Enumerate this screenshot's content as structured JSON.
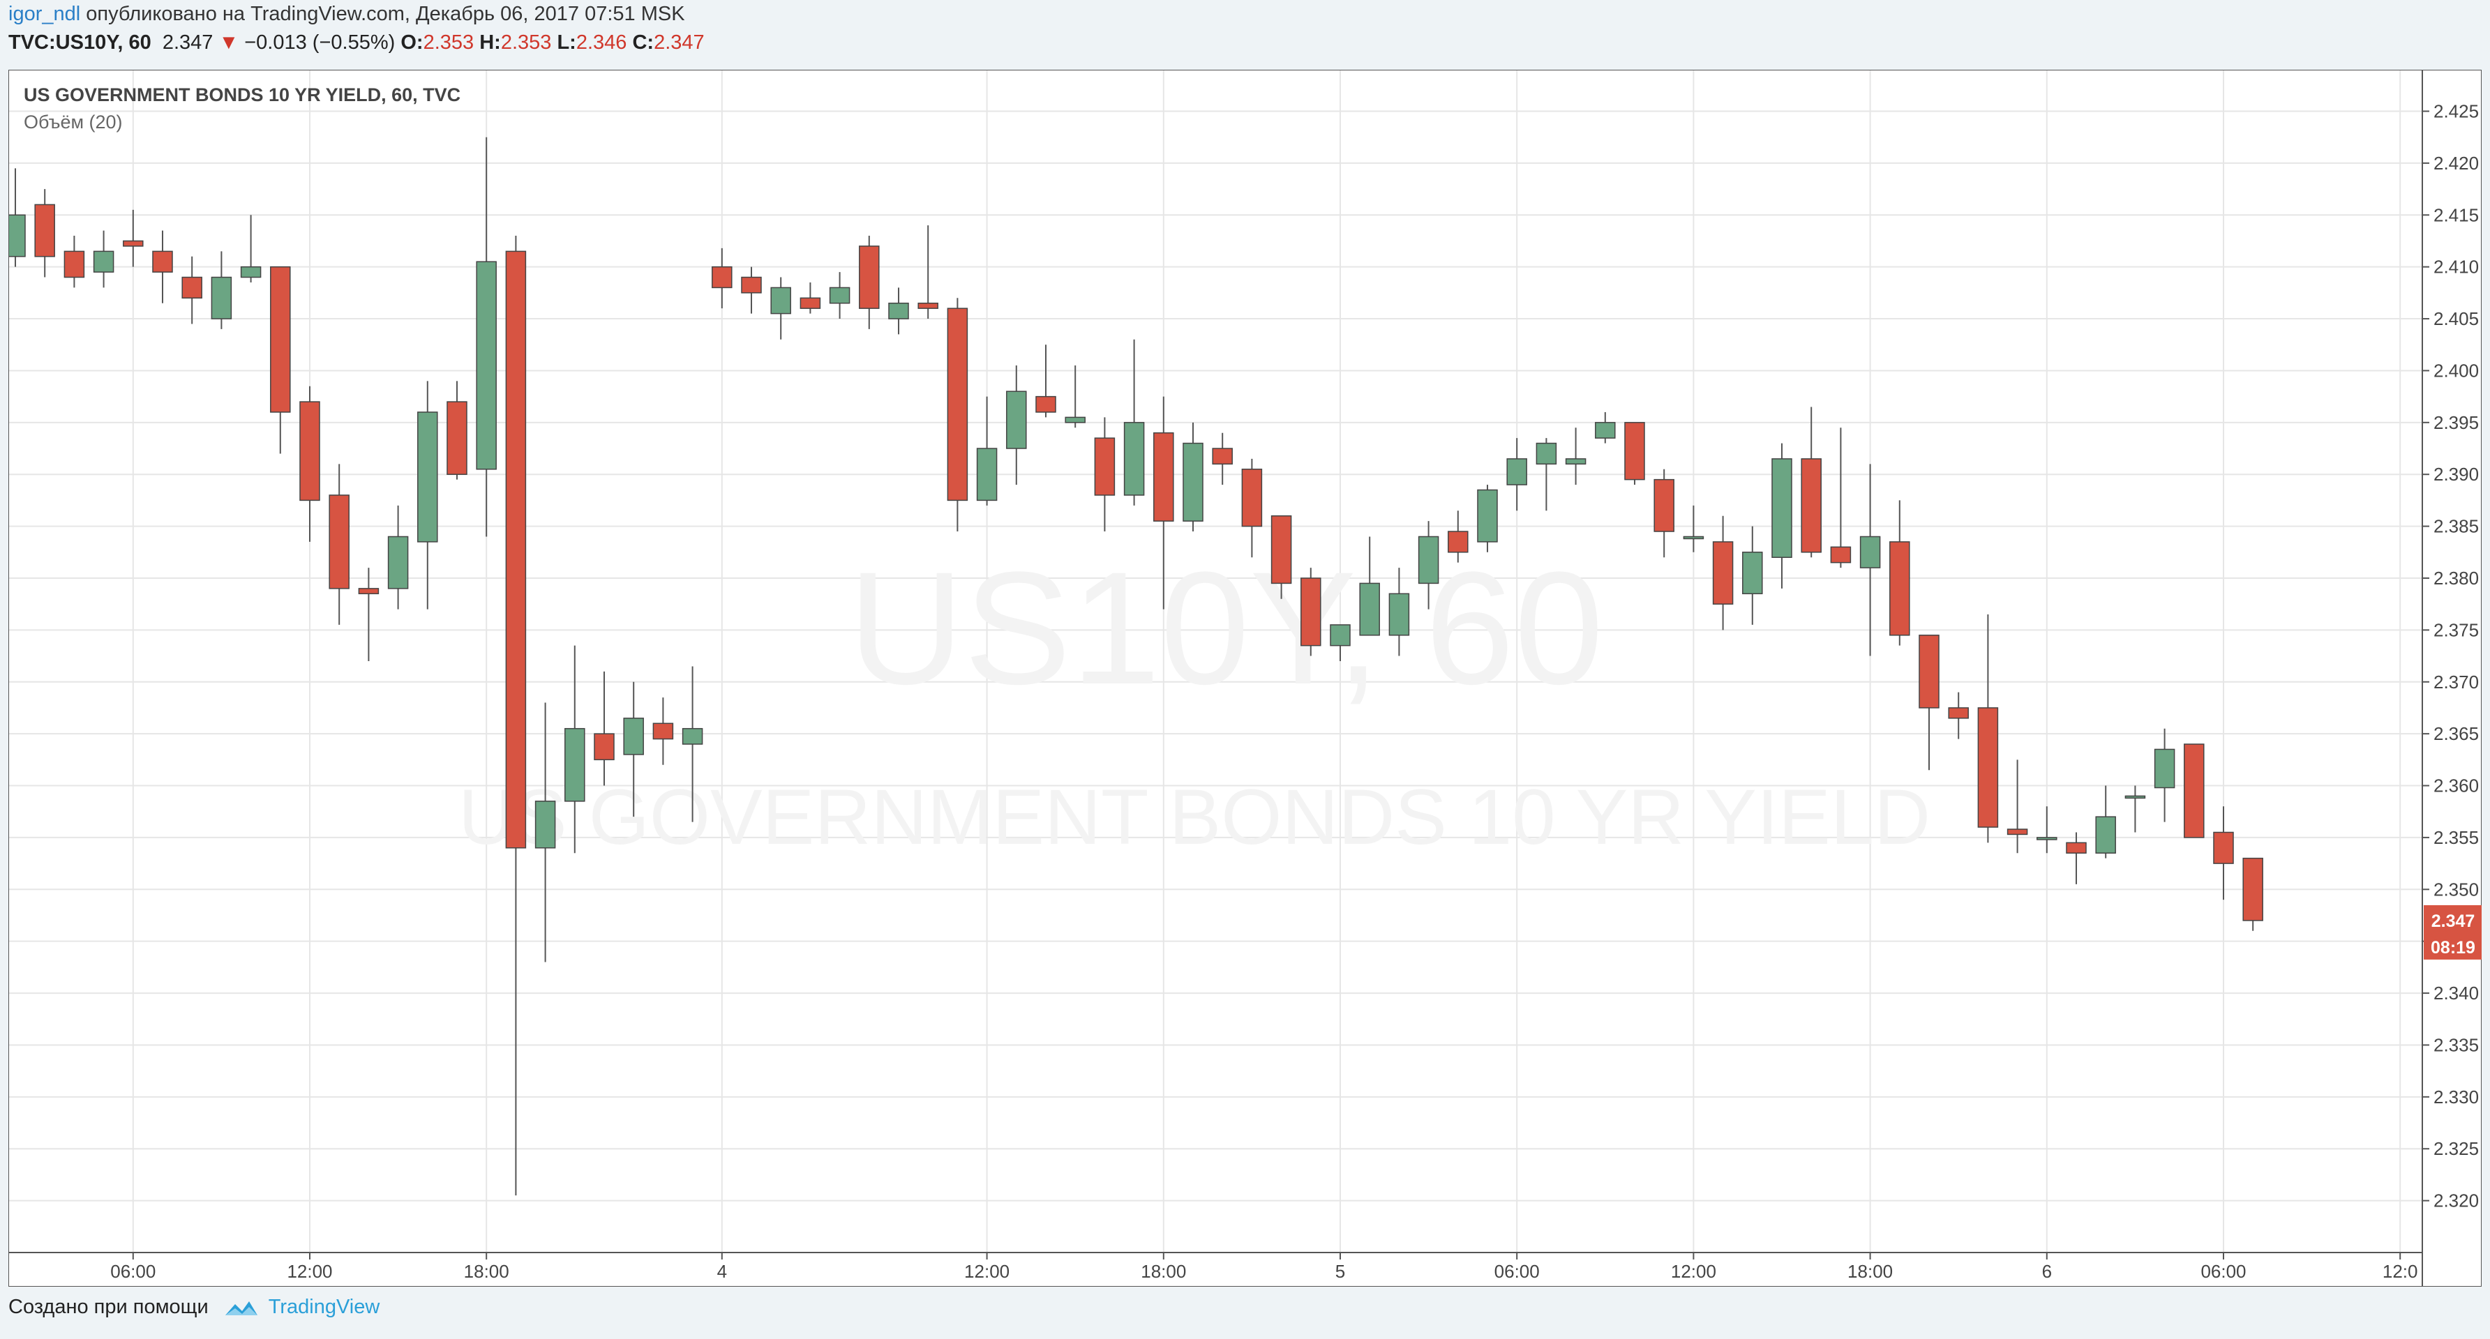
{
  "header": {
    "user": "igor_ndl",
    "published_text": "опубликовано на TradingView.com, Декабрь 06, 2017 07:51 MSK",
    "symbol": "TVC:US10Y, 60",
    "price": "2.347",
    "change": "−0.013 (−0.55%)",
    "o_label": "O:",
    "o_value": "2.353",
    "h_label": "H:",
    "h_value": "2.353",
    "l_label": "L:",
    "l_value": "2.346",
    "c_label": "C:",
    "c_value": "2.347"
  },
  "legend": {
    "title": "US GOVERNMENT BONDS 10 YR YIELD, 60, TVC",
    "volume": "Объём (20)"
  },
  "watermark": {
    "line1": "US10Y, 60",
    "line2": "US GOVERNMENT BONDS 10 YR YIELD"
  },
  "price_badge": {
    "price": "2.347",
    "countdown": "08:19"
  },
  "footer": {
    "created_with": "Создано при помощи",
    "brand": "TradingView"
  },
  "colors": {
    "up": "#6ba583",
    "down": "#d75442",
    "badge": "#d75442",
    "grid": "#e6e6e6",
    "axis": "#555555"
  },
  "chart_data": {
    "type": "candlestick",
    "title": "US GOVERNMENT BONDS 10 YR YIELD, 60, TVC",
    "ylim": [
      2.315,
      2.429
    ],
    "y_ticks": [
      "2.320",
      "2.325",
      "2.330",
      "2.335",
      "2.340",
      "2.345",
      "2.350",
      "2.355",
      "2.360",
      "2.365",
      "2.370",
      "2.375",
      "2.380",
      "2.385",
      "2.390",
      "2.395",
      "2.400",
      "2.405",
      "2.410",
      "2.415",
      "2.420",
      "2.425"
    ],
    "x_ticks": [
      {
        "label": "06:00",
        "i": 4
      },
      {
        "label": "12:00",
        "i": 10
      },
      {
        "label": "18:00",
        "i": 16
      },
      {
        "label": "4",
        "i": 24
      },
      {
        "label": "12:00",
        "i": 33
      },
      {
        "label": "18:00",
        "i": 39
      },
      {
        "label": "5",
        "i": 45
      },
      {
        "label": "06:00",
        "i": 51
      },
      {
        "label": "12:00",
        "i": 57
      },
      {
        "label": "18:00",
        "i": 63
      },
      {
        "label": "6",
        "i": 69
      },
      {
        "label": "06:00",
        "i": 75
      },
      {
        "label": "12:0",
        "i": 81
      }
    ],
    "candles": [
      {
        "i": 0,
        "o": 2.411,
        "h": 2.4195,
        "l": 2.41,
        "c": 2.415
      },
      {
        "i": 1,
        "o": 2.416,
        "h": 2.4175,
        "l": 2.409,
        "c": 2.411
      },
      {
        "i": 2,
        "o": 2.4115,
        "h": 2.413,
        "l": 2.408,
        "c": 2.409
      },
      {
        "i": 3,
        "o": 2.4095,
        "h": 2.4135,
        "l": 2.408,
        "c": 2.4115
      },
      {
        "i": 4,
        "o": 2.4125,
        "h": 2.4155,
        "l": 2.41,
        "c": 2.412
      },
      {
        "i": 5,
        "o": 2.4115,
        "h": 2.4135,
        "l": 2.4065,
        "c": 2.4095
      },
      {
        "i": 6,
        "o": 2.409,
        "h": 2.411,
        "l": 2.4045,
        "c": 2.407
      },
      {
        "i": 7,
        "o": 2.405,
        "h": 2.4115,
        "l": 2.404,
        "c": 2.409
      },
      {
        "i": 8,
        "o": 2.409,
        "h": 2.415,
        "l": 2.4085,
        "c": 2.41
      },
      {
        "i": 9,
        "o": 2.41,
        "h": 2.41,
        "l": 2.392,
        "c": 2.396
      },
      {
        "i": 10,
        "o": 2.397,
        "h": 2.3985,
        "l": 2.3835,
        "c": 2.3875
      },
      {
        "i": 11,
        "o": 2.388,
        "h": 2.391,
        "l": 2.3755,
        "c": 2.379
      },
      {
        "i": 12,
        "o": 2.379,
        "h": 2.381,
        "l": 2.372,
        "c": 2.3785
      },
      {
        "i": 13,
        "o": 2.379,
        "h": 2.387,
        "l": 2.377,
        "c": 2.384
      },
      {
        "i": 14,
        "o": 2.3835,
        "h": 2.399,
        "l": 2.377,
        "c": 2.396
      },
      {
        "i": 15,
        "o": 2.397,
        "h": 2.399,
        "l": 2.3895,
        "c": 2.39
      },
      {
        "i": 16,
        "o": 2.3905,
        "h": 2.4225,
        "l": 2.384,
        "c": 2.4105
      },
      {
        "i": 17,
        "o": 2.4115,
        "h": 2.413,
        "l": 2.3205,
        "c": 2.354
      },
      {
        "i": 18,
        "o": 2.354,
        "h": 2.368,
        "l": 2.343,
        "c": 2.3585
      },
      {
        "i": 19,
        "o": 2.3585,
        "h": 2.3735,
        "l": 2.3535,
        "c": 2.3655
      },
      {
        "i": 20,
        "o": 2.365,
        "h": 2.371,
        "l": 2.36,
        "c": 2.3625
      },
      {
        "i": 21,
        "o": 2.363,
        "h": 2.37,
        "l": 2.357,
        "c": 2.3665
      },
      {
        "i": 22,
        "o": 2.366,
        "h": 2.3685,
        "l": 2.362,
        "c": 2.3645
      },
      {
        "i": 23,
        "o": 2.364,
        "h": 2.3715,
        "l": 2.3565,
        "c": 2.3655
      },
      {
        "i": 24,
        "o": 2.41,
        "h": 2.4118,
        "l": 2.406,
        "c": 2.408
      },
      {
        "i": 25,
        "o": 2.409,
        "h": 2.41,
        "l": 2.4055,
        "c": 2.4075
      },
      {
        "i": 26,
        "o": 2.4055,
        "h": 2.409,
        "l": 2.403,
        "c": 2.408
      },
      {
        "i": 27,
        "o": 2.407,
        "h": 2.4085,
        "l": 2.4055,
        "c": 2.406
      },
      {
        "i": 28,
        "o": 2.4065,
        "h": 2.4095,
        "l": 2.405,
        "c": 2.408
      },
      {
        "i": 29,
        "o": 2.412,
        "h": 2.413,
        "l": 2.404,
        "c": 2.406
      },
      {
        "i": 30,
        "o": 2.405,
        "h": 2.408,
        "l": 2.4035,
        "c": 2.4065
      },
      {
        "i": 31,
        "o": 2.4065,
        "h": 2.414,
        "l": 2.405,
        "c": 2.406
      },
      {
        "i": 32,
        "o": 2.406,
        "h": 2.407,
        "l": 2.3845,
        "c": 2.3875
      },
      {
        "i": 33,
        "o": 2.3875,
        "h": 2.3975,
        "l": 2.387,
        "c": 2.3925
      },
      {
        "i": 34,
        "o": 2.3925,
        "h": 2.4005,
        "l": 2.389,
        "c": 2.398
      },
      {
        "i": 35,
        "o": 2.3975,
        "h": 2.4025,
        "l": 2.3955,
        "c": 2.396
      },
      {
        "i": 36,
        "o": 2.395,
        "h": 2.4005,
        "l": 2.3945,
        "c": 2.3955
      },
      {
        "i": 37,
        "o": 2.3935,
        "h": 2.3955,
        "l": 2.3845,
        "c": 2.388
      },
      {
        "i": 38,
        "o": 2.388,
        "h": 2.403,
        "l": 2.387,
        "c": 2.395
      },
      {
        "i": 39,
        "o": 2.394,
        "h": 2.3975,
        "l": 2.377,
        "c": 2.3855
      },
      {
        "i": 40,
        "o": 2.3855,
        "h": 2.395,
        "l": 2.3845,
        "c": 2.393
      },
      {
        "i": 41,
        "o": 2.3925,
        "h": 2.394,
        "l": 2.389,
        "c": 2.391
      },
      {
        "i": 42,
        "o": 2.3905,
        "h": 2.3915,
        "l": 2.382,
        "c": 2.385
      },
      {
        "i": 43,
        "o": 2.386,
        "h": 2.386,
        "l": 2.378,
        "c": 2.3795
      },
      {
        "i": 44,
        "o": 2.38,
        "h": 2.381,
        "l": 2.3725,
        "c": 2.3735
      },
      {
        "i": 45,
        "o": 2.3735,
        "h": 2.3755,
        "l": 2.372,
        "c": 2.3755
      },
      {
        "i": 46,
        "o": 2.3745,
        "h": 2.384,
        "l": 2.3745,
        "c": 2.3795
      },
      {
        "i": 47,
        "o": 2.3745,
        "h": 2.381,
        "l": 2.3725,
        "c": 2.3785
      },
      {
        "i": 48,
        "o": 2.3795,
        "h": 2.3855,
        "l": 2.377,
        "c": 2.384
      },
      {
        "i": 49,
        "o": 2.3845,
        "h": 2.3865,
        "l": 2.3815,
        "c": 2.3825
      },
      {
        "i": 50,
        "o": 2.3835,
        "h": 2.389,
        "l": 2.3825,
        "c": 2.3885
      },
      {
        "i": 51,
        "o": 2.389,
        "h": 2.3935,
        "l": 2.3865,
        "c": 2.3915
      },
      {
        "i": 52,
        "o": 2.391,
        "h": 2.3935,
        "l": 2.3865,
        "c": 2.393
      },
      {
        "i": 53,
        "o": 2.391,
        "h": 2.3945,
        "l": 2.389,
        "c": 2.3915
      },
      {
        "i": 54,
        "o": 2.3935,
        "h": 2.396,
        "l": 2.393,
        "c": 2.395
      },
      {
        "i": 55,
        "o": 2.395,
        "h": 2.395,
        "l": 2.389,
        "c": 2.3895
      },
      {
        "i": 56,
        "o": 2.3895,
        "h": 2.3905,
        "l": 2.382,
        "c": 2.3845
      },
      {
        "i": 57,
        "o": 2.384,
        "h": 2.387,
        "l": 2.3825,
        "c": 2.384
      },
      {
        "i": 58,
        "o": 2.3835,
        "h": 2.386,
        "l": 2.375,
        "c": 2.3775
      },
      {
        "i": 59,
        "o": 2.3785,
        "h": 2.385,
        "l": 2.3755,
        "c": 2.3825
      },
      {
        "i": 60,
        "o": 2.382,
        "h": 2.393,
        "l": 2.379,
        "c": 2.3915
      },
      {
        "i": 61,
        "o": 2.3915,
        "h": 2.3965,
        "l": 2.382,
        "c": 2.3825
      },
      {
        "i": 62,
        "o": 2.383,
        "h": 2.3945,
        "l": 2.381,
        "c": 2.3815
      },
      {
        "i": 63,
        "o": 2.381,
        "h": 2.391,
        "l": 2.3725,
        "c": 2.384
      },
      {
        "i": 64,
        "o": 2.3835,
        "h": 2.3875,
        "l": 2.3735,
        "c": 2.3745
      },
      {
        "i": 65,
        "o": 2.3745,
        "h": 2.3745,
        "l": 2.3615,
        "c": 2.3675
      },
      {
        "i": 66,
        "o": 2.3675,
        "h": 2.369,
        "l": 2.3645,
        "c": 2.3665
      },
      {
        "i": 67,
        "o": 2.3675,
        "h": 2.3765,
        "l": 2.3545,
        "c": 2.356
      },
      {
        "i": 68,
        "o": 2.3558,
        "h": 2.3625,
        "l": 2.3535,
        "c": 2.3553
      },
      {
        "i": 69,
        "o": 2.355,
        "h": 2.358,
        "l": 2.3535,
        "c": 2.355
      },
      {
        "i": 70,
        "o": 2.3545,
        "h": 2.3555,
        "l": 2.3505,
        "c": 2.3535
      },
      {
        "i": 71,
        "o": 2.3535,
        "h": 2.36,
        "l": 2.353,
        "c": 2.357
      },
      {
        "i": 72,
        "o": 2.359,
        "h": 2.36,
        "l": 2.3555,
        "c": 2.359
      },
      {
        "i": 73,
        "o": 2.3598,
        "h": 2.3655,
        "l": 2.3565,
        "c": 2.3635
      },
      {
        "i": 74,
        "o": 2.364,
        "h": 2.364,
        "l": 2.355,
        "c": 2.355
      },
      {
        "i": 75,
        "o": 2.3555,
        "h": 2.358,
        "l": 2.349,
        "c": 2.3525
      },
      {
        "i": 76,
        "o": 2.353,
        "h": 2.353,
        "l": 2.346,
        "c": 2.347
      }
    ]
  }
}
